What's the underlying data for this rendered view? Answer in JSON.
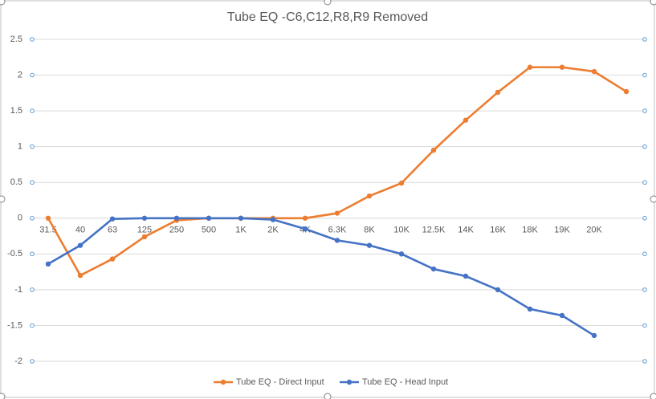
{
  "chart_data": {
    "type": "line",
    "title": "Tube EQ  -C6,C12,R8,R9 Removed",
    "categories": [
      "31.5",
      "40",
      "63",
      "125",
      "250",
      "500",
      "1K",
      "2K",
      "4K",
      "6.3K",
      "8K",
      "10K",
      "12.5K",
      "14K",
      "16K",
      "18K",
      "19K",
      "20K",
      null
    ],
    "series": [
      {
        "name": "Tube EQ - Direct Input",
        "color": "#ed7d31",
        "values": [
          0,
          -0.8,
          -0.57,
          -0.26,
          -0.03,
          0,
          0,
          0,
          0,
          0.07,
          0.31,
          0.49,
          0.95,
          1.37,
          1.76,
          2.11,
          2.11,
          2.05,
          1.77
        ]
      },
      {
        "name": "Tube EQ - Head Input",
        "color": "#4472c4",
        "values": [
          -0.64,
          -0.38,
          -0.01,
          0,
          0,
          0,
          0,
          -0.02,
          -0.15,
          -0.31,
          -0.38,
          -0.5,
          -0.71,
          -0.81,
          -1.0,
          -1.27,
          -1.36,
          -1.64,
          null
        ]
      }
    ],
    "ylim": [
      -2,
      2.5
    ],
    "yticks": [
      -2,
      -1.5,
      -1,
      -0.5,
      0,
      0.5,
      1,
      1.5,
      2,
      2.5
    ],
    "grid": true,
    "legend": "bottom"
  }
}
